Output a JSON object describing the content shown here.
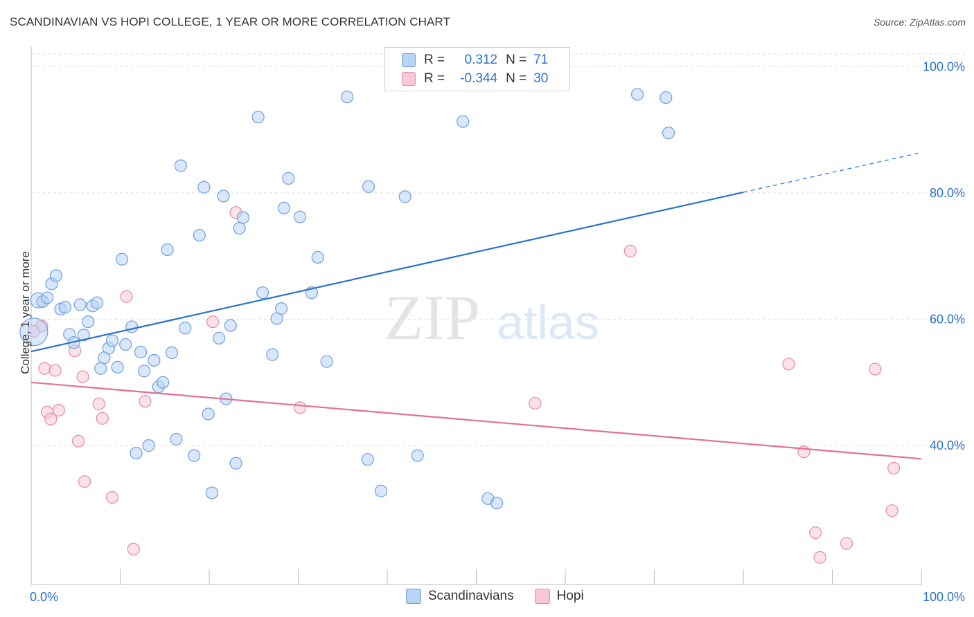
{
  "header": {
    "title": "SCANDINAVIAN VS HOPI COLLEGE, 1 YEAR OR MORE CORRELATION CHART",
    "source": "Source: ZipAtlas.com"
  },
  "watermark": {
    "zip": "ZIP",
    "atlas": "atlas"
  },
  "legend": {
    "rows": [
      {
        "r_label": "R =",
        "r_value": "0.312",
        "n_label": "N =",
        "n_value": "71"
      },
      {
        "r_label": "R =",
        "r_value": "-0.344",
        "n_label": "N =",
        "n_value": "30"
      }
    ]
  },
  "bottom_legend": {
    "items": [
      "Scandinavians",
      "Hopi"
    ]
  },
  "colors": {
    "blue_fill": "#b8d3f4",
    "blue_stroke": "#6e9fe0",
    "blue_line": "#2a72d0",
    "pink_fill": "#f8c8d6",
    "pink_stroke": "#e88aa6",
    "pink_line": "#e46e96",
    "tick_label": "#2a6fd1",
    "grid": "#dddddd"
  },
  "chart_data": {
    "type": "scatter",
    "title": "SCANDINAVIAN VS HOPI COLLEGE, 1 YEAR OR MORE CORRELATION CHART",
    "xlabel": "",
    "ylabel": "College, 1 year or more",
    "xlim": [
      0,
      100
    ],
    "ylim": [
      18,
      102
    ],
    "x_tick_labels": [
      "0.0%",
      "100.0%"
    ],
    "y_ticks": [
      40,
      60,
      80,
      100
    ],
    "y_tick_labels": [
      "40.0%",
      "60.0%",
      "80.0%",
      "100.0%"
    ],
    "grid": "horizontal dashed",
    "legend_placement": "top-center",
    "series": [
      {
        "name": "Scandinavians",
        "r": 0.312,
        "n": 71,
        "trend": {
          "x": [
            0,
            80
          ],
          "y": [
            54.9,
            80.1
          ],
          "dashed_extension": {
            "x": [
              80,
              100
            ],
            "y": [
              80.1,
              86.4
            ]
          }
        },
        "points": [
          [
            0.3,
            58.0
          ],
          [
            0.8,
            63.0
          ],
          [
            1.3,
            62.8
          ],
          [
            1.8,
            63.4
          ],
          [
            2.3,
            65.6
          ],
          [
            2.8,
            66.9
          ],
          [
            3.3,
            61.6
          ],
          [
            3.8,
            61.9
          ],
          [
            4.3,
            57.6
          ],
          [
            4.8,
            56.3
          ],
          [
            5.5,
            62.3
          ],
          [
            5.9,
            57.5
          ],
          [
            6.4,
            59.6
          ],
          [
            6.9,
            62.1
          ],
          [
            7.4,
            62.6
          ],
          [
            7.8,
            52.2
          ],
          [
            8.2,
            53.9
          ],
          [
            8.7,
            55.4
          ],
          [
            9.1,
            56.6
          ],
          [
            9.7,
            52.4
          ],
          [
            10.2,
            69.5
          ],
          [
            10.6,
            56.0
          ],
          [
            11.3,
            58.8
          ],
          [
            11.8,
            38.8
          ],
          [
            12.3,
            54.8
          ],
          [
            12.7,
            51.8
          ],
          [
            13.2,
            40.0
          ],
          [
            13.8,
            53.5
          ],
          [
            14.3,
            49.3
          ],
          [
            14.8,
            50.0
          ],
          [
            15.3,
            71.0
          ],
          [
            15.8,
            54.7
          ],
          [
            16.3,
            41.0
          ],
          [
            16.8,
            84.3
          ],
          [
            17.3,
            58.6
          ],
          [
            18.3,
            38.4
          ],
          [
            18.9,
            73.3
          ],
          [
            19.4,
            80.9
          ],
          [
            19.9,
            45.0
          ],
          [
            20.3,
            32.5
          ],
          [
            21.1,
            57.0
          ],
          [
            21.6,
            79.5
          ],
          [
            21.9,
            47.4
          ],
          [
            22.4,
            59.0
          ],
          [
            23.0,
            37.2
          ],
          [
            23.4,
            74.4
          ],
          [
            23.8,
            76.1
          ],
          [
            25.5,
            92.0
          ],
          [
            26.0,
            64.2
          ],
          [
            27.1,
            54.4
          ],
          [
            27.6,
            60.1
          ],
          [
            28.1,
            61.7
          ],
          [
            28.4,
            77.6
          ],
          [
            28.9,
            82.3
          ],
          [
            30.2,
            76.2
          ],
          [
            31.5,
            64.2
          ],
          [
            32.2,
            69.8
          ],
          [
            33.2,
            53.3
          ],
          [
            35.5,
            95.2
          ],
          [
            37.8,
            37.8
          ],
          [
            37.9,
            81.0
          ],
          [
            39.3,
            32.8
          ],
          [
            42.0,
            79.4
          ],
          [
            43.4,
            38.4
          ],
          [
            47.1,
            100.0
          ],
          [
            48.5,
            91.3
          ],
          [
            51.3,
            31.6
          ],
          [
            52.3,
            30.9
          ],
          [
            68.1,
            95.6
          ],
          [
            71.3,
            95.1
          ],
          [
            71.6,
            89.5
          ]
        ]
      },
      {
        "name": "Hopi",
        "r": -0.344,
        "n": 30,
        "trend": {
          "x": [
            0,
            100
          ],
          "y": [
            50.0,
            37.9
          ]
        },
        "points": [
          [
            0.3,
            58.1
          ],
          [
            1.2,
            58.9
          ],
          [
            1.5,
            52.2
          ],
          [
            1.8,
            45.3
          ],
          [
            2.2,
            44.2
          ],
          [
            2.7,
            51.9
          ],
          [
            3.1,
            45.6
          ],
          [
            4.9,
            55.0
          ],
          [
            5.3,
            40.7
          ],
          [
            5.8,
            50.9
          ],
          [
            6.0,
            34.3
          ],
          [
            7.6,
            46.6
          ],
          [
            8.0,
            44.3
          ],
          [
            9.1,
            31.8
          ],
          [
            10.7,
            63.6
          ],
          [
            11.5,
            23.6
          ],
          [
            12.8,
            47.0
          ],
          [
            20.4,
            59.6
          ],
          [
            23.0,
            76.9
          ],
          [
            30.2,
            46.0
          ],
          [
            56.6,
            46.7
          ],
          [
            67.3,
            70.8
          ],
          [
            85.1,
            52.9
          ],
          [
            86.8,
            39.0
          ],
          [
            88.1,
            26.2
          ],
          [
            88.6,
            22.3
          ],
          [
            91.6,
            24.5
          ],
          [
            94.8,
            52.1
          ],
          [
            96.7,
            29.7
          ],
          [
            96.9,
            36.4
          ]
        ]
      }
    ]
  }
}
